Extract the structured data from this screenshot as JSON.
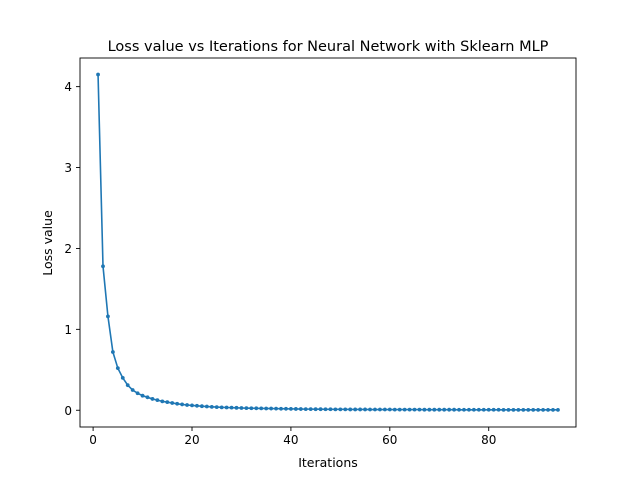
{
  "chart_data": {
    "type": "line",
    "title": "Loss value vs Iterations for Neural Network with Sklearn MLP",
    "xlabel": "Iterations",
    "ylabel": "Loss value",
    "xlim": [
      -2.65,
      97.65
    ],
    "ylim": [
      -0.207,
      4.354
    ],
    "xticks": [
      0,
      20,
      40,
      60,
      80
    ],
    "yticks": [
      0,
      1,
      2,
      3,
      4
    ],
    "grid": false,
    "legend": "none",
    "color": "#1f77b4",
    "marker": "dot",
    "series": [
      {
        "x": [
          1,
          2,
          3,
          4,
          5,
          6,
          7,
          8,
          9,
          10,
          11,
          12,
          13,
          14,
          15,
          16,
          17,
          18,
          19,
          20,
          21,
          22,
          23,
          24,
          25,
          26,
          27,
          28,
          29,
          30,
          31,
          32,
          33,
          34,
          35,
          36,
          37,
          38,
          39,
          40,
          41,
          42,
          43,
          44,
          45,
          46,
          47,
          48,
          49,
          50,
          51,
          52,
          53,
          54,
          55,
          56,
          57,
          58,
          59,
          60,
          61,
          62,
          63,
          64,
          65,
          66,
          67,
          68,
          69,
          70,
          71,
          72,
          73,
          74,
          75,
          76,
          77,
          78,
          79,
          80,
          81,
          82,
          83,
          84,
          85,
          86,
          87,
          88,
          89,
          90,
          91,
          92,
          93,
          94
        ],
        "y": [
          4.15,
          1.78,
          1.16,
          0.72,
          0.52,
          0.4,
          0.31,
          0.25,
          0.21,
          0.18,
          0.16,
          0.14,
          0.125,
          0.11,
          0.1,
          0.09,
          0.08,
          0.072,
          0.065,
          0.06,
          0.055,
          0.05,
          0.046,
          0.042,
          0.039,
          0.036,
          0.034,
          0.032,
          0.03,
          0.028,
          0.026,
          0.025,
          0.024,
          0.023,
          0.022,
          0.021,
          0.02,
          0.019,
          0.018,
          0.017,
          0.016,
          0.015,
          0.014,
          0.014,
          0.013,
          0.013,
          0.012,
          0.012,
          0.011,
          0.011,
          0.011,
          0.01,
          0.01,
          0.01,
          0.01,
          0.009,
          0.009,
          0.009,
          0.009,
          0.009,
          0.008,
          0.008,
          0.008,
          0.008,
          0.008,
          0.008,
          0.007,
          0.007,
          0.007,
          0.007,
          0.007,
          0.007,
          0.007,
          0.006,
          0.006,
          0.006,
          0.006,
          0.006,
          0.006,
          0.006,
          0.006,
          0.006,
          0.005,
          0.005,
          0.005,
          0.005,
          0.005,
          0.005,
          0.005,
          0.005,
          0.005,
          0.005,
          0.005,
          0.005
        ]
      }
    ]
  }
}
